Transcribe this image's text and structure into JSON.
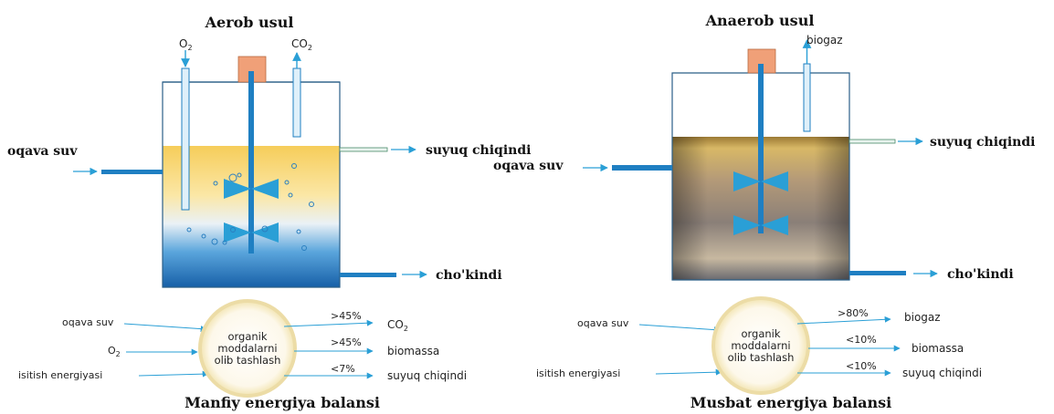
{
  "aerobic": {
    "title": "Aerob usul",
    "gas_in": "O",
    "gas_in_sub": "2",
    "gas_out": "CO",
    "gas_out_sub": "2",
    "inlet": "oqava suv",
    "outlet_liquid": "suyuq chiqindi",
    "outlet_sludge": "cho'kindi",
    "balance": {
      "inputs": [
        "oqava suv",
        "O",
        "isitish energiyasi"
      ],
      "input_o2_sub": "2",
      "center": [
        "organik",
        "moddalarni",
        "olib tashlash"
      ],
      "outputs": [
        {
          "pct": ">45%",
          "label": "CO",
          "sub": "2"
        },
        {
          "pct": ">45%",
          "label": "biomassa",
          "sub": ""
        },
        {
          "pct": "<7%",
          "label": "suyuq chiqindi",
          "sub": ""
        }
      ],
      "caption": "Manfiy energiya balansi"
    }
  },
  "anaerobic": {
    "title": "Anaerob usul",
    "gas_out": "biogaz",
    "inlet": "oqava suv",
    "outlet_liquid": "suyuq chiqindi",
    "outlet_sludge": "cho'kindi",
    "balance": {
      "inputs": [
        "oqava suv",
        "isitish energiyasi"
      ],
      "center": [
        "organik",
        "moddalarni",
        "olib tashlash"
      ],
      "outputs": [
        {
          "pct": ">80%",
          "label": "biogaz"
        },
        {
          "pct": "<10%",
          "label": "biomassa"
        },
        {
          "pct": "<10%",
          "label": "suyuq chiqindi"
        }
      ],
      "caption": "Musbat energiya balansi"
    }
  },
  "colors": {
    "arrow": "#2a9fd6",
    "shaft": "#1f7fc2",
    "impeller": "#2a9fd6",
    "motor": "#f0a078",
    "tank_outline": "#1a5a8a",
    "liquid_top_aerobic": "#f7d26a",
    "liquid_bottom_aerobic": "#1a6fb8",
    "liquid_top_anaerobic": "#c8a040",
    "liquid_bottom_anaerobic": "#3a4a60",
    "circle_fill": "#fdf6e3",
    "circle_ring": "#f0e4b8"
  }
}
